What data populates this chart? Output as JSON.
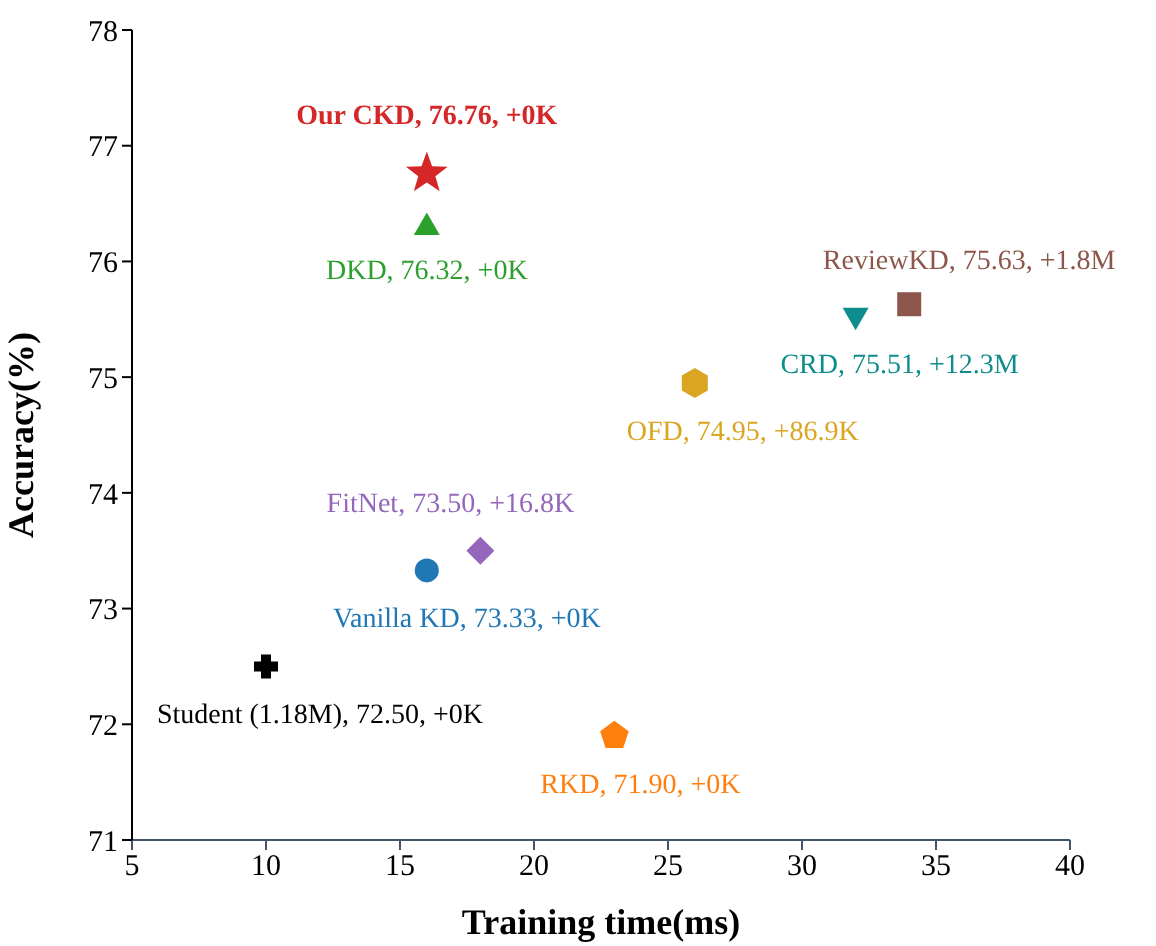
{
  "chart_data": {
    "type": "scatter",
    "xlabel": "Training time(ms)",
    "ylabel": "Accuracy(%)",
    "xlim": [
      5,
      40
    ],
    "xticks": [
      5,
      10,
      15,
      20,
      25,
      30,
      35,
      40
    ],
    "ylim": [
      71,
      78
    ],
    "yticks": [
      71,
      72,
      73,
      74,
      75,
      76,
      77,
      78
    ],
    "series": [
      {
        "name": "Student (1.18M), 72.50, +0K",
        "color": "#000000",
        "marker": "cross",
        "x": [
          10
        ],
        "values": [
          72.5
        ]
      },
      {
        "name": "Vanilla KD, 73.33, +0K",
        "color": "#1f77b4",
        "marker": "circle",
        "x": [
          16
        ],
        "values": [
          73.33
        ]
      },
      {
        "name": "FitNet, 73.50, +16.8K",
        "color": "#9467bd",
        "marker": "diamond",
        "x": [
          18
        ],
        "values": [
          73.5
        ]
      },
      {
        "name": "RKD, 71.90, +0K",
        "color": "#ff7f0e",
        "x": [
          23
        ],
        "values": [
          71.9
        ]
      },
      {
        "name": "OFD, 74.95, +86.9K",
        "color": "#daa520",
        "x": [
          26
        ],
        "values": [
          74.95
        ]
      },
      {
        "name": "CRD, 75.51, +12.3M",
        "color": "#0f8c8c",
        "marker": "triangle-down",
        "x": [
          32
        ],
        "values": [
          75.51
        ]
      },
      {
        "name": "ReviewKD, 75.63, +1.8M",
        "color": "#8c564b",
        "marker": "square",
        "x": [
          34
        ],
        "values": [
          75.63
        ]
      },
      {
        "name": "DKD, 76.32, +0K",
        "color": "#2ca02c",
        "marker": "triangle",
        "x": [
          16
        ],
        "values": [
          76.32
        ]
      },
      {
        "name": "Our CKD, 76.76, +0K",
        "color": "#d62728",
        "marker": "star",
        "x": [
          16
        ],
        "values": [
          76.76
        ]
      }
    ]
  }
}
